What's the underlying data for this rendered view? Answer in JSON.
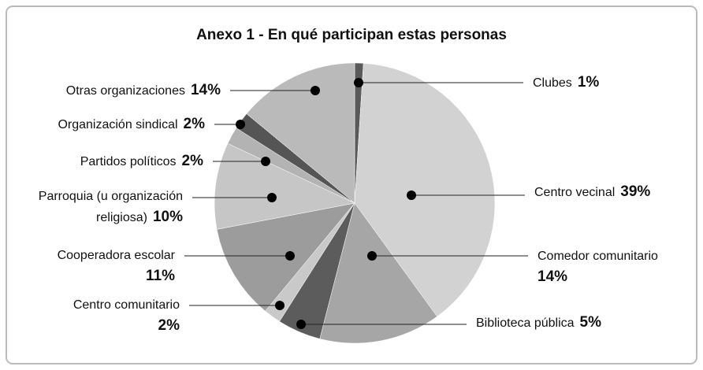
{
  "chart_data": {
    "type": "pie",
    "title": "Anexo 1  -  En qué participan estas personas",
    "categories": [
      "Clubes",
      "Centro vecinal",
      "Comedor comunitario",
      "Biblioteca pública",
      "Centro comunitario",
      "Cooperadora escolar",
      "Parroquia (u organización religiosa)",
      "Partidos políticos",
      "Organización sindical",
      "Otras organizaciones"
    ],
    "values": [
      1,
      39,
      14,
      5,
      2,
      11,
      10,
      2,
      2,
      14
    ],
    "value_labels": [
      "1%",
      "39%",
      "14%",
      "5%",
      "2%",
      "11%",
      "10%",
      "2%",
      "2%",
      "14%"
    ],
    "colors": [
      "#5a5a5a",
      "#d2d2d2",
      "#a6a6a6",
      "#5c5c5c",
      "#c9c9c9",
      "#9c9c9c",
      "#c6c6c6",
      "#b3b3b3",
      "#555555",
      "#bababa"
    ]
  }
}
